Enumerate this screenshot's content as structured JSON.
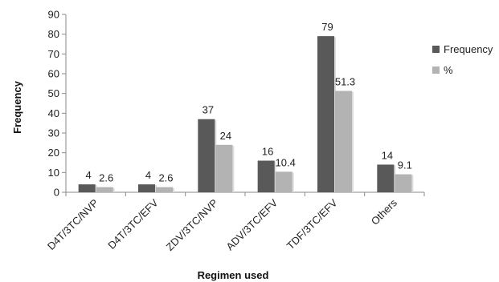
{
  "chart_data": {
    "type": "bar",
    "title": "",
    "xlabel": "Regimen used",
    "ylabel": "Frequency",
    "ylim": [
      0,
      90
    ],
    "yticks": [
      0,
      10,
      20,
      30,
      40,
      50,
      60,
      70,
      80,
      90
    ],
    "grid": false,
    "legend_position": "right",
    "categories": [
      "D4T/3TC/NVP",
      "D4T/3TC/EFV",
      "ZDV/3TC/NVP",
      "ADV/3TC/EFV",
      "TDF/3TC/EFV",
      "Others"
    ],
    "series": [
      {
        "name": "Frequency",
        "color": "#595959",
        "values": [
          4,
          4,
          37,
          16,
          79,
          14
        ],
        "labels": [
          "4",
          "4",
          "37",
          "16",
          "79",
          "14"
        ]
      },
      {
        "name": "%",
        "color": "#b3b3b3",
        "values": [
          2.6,
          2.6,
          24,
          10.4,
          51.3,
          9.1
        ],
        "labels": [
          "2.6",
          "2.6",
          "24",
          "10.4",
          "51.3",
          "9.1"
        ]
      }
    ]
  }
}
